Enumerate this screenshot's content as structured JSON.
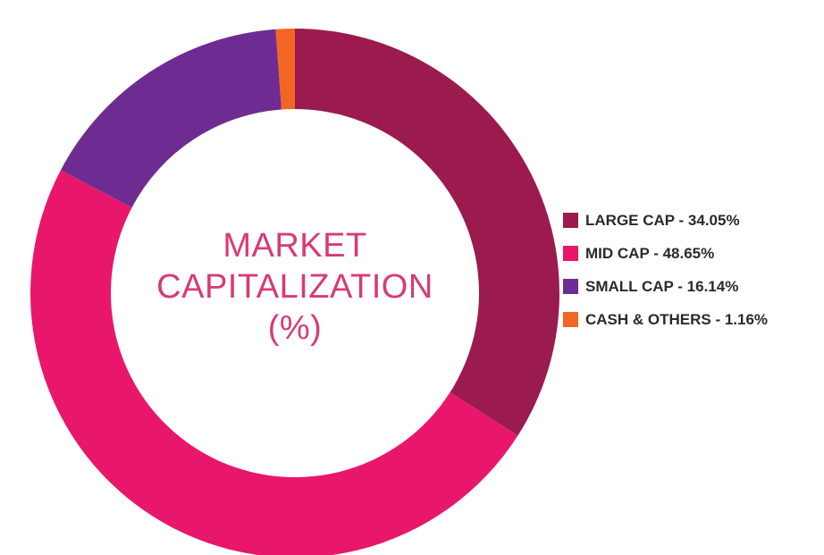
{
  "chart_data": {
    "type": "pie",
    "title_lines": [
      "MARKET",
      "CAPITALIZATION",
      "(%)"
    ],
    "donut": true,
    "legend_placement": "right",
    "slices": [
      {
        "name": "LARGE CAP",
        "value": 34.05,
        "color": "#9b1b4e",
        "legend_label": "LARGE CAP - 34.05%"
      },
      {
        "name": "MID CAP",
        "value": 48.65,
        "color": "#e8176b",
        "legend_label": "MID CAP - 48.65%"
      },
      {
        "name": "SMALL CAP",
        "value": 16.14,
        "color": "#6e2c92",
        "legend_label": "SMALL CAP - 16.14%"
      },
      {
        "name": "CASH & OTHERS",
        "value": 1.16,
        "color": "#f26522",
        "legend_label": "CASH & OTHERS - 1.16%"
      }
    ]
  }
}
